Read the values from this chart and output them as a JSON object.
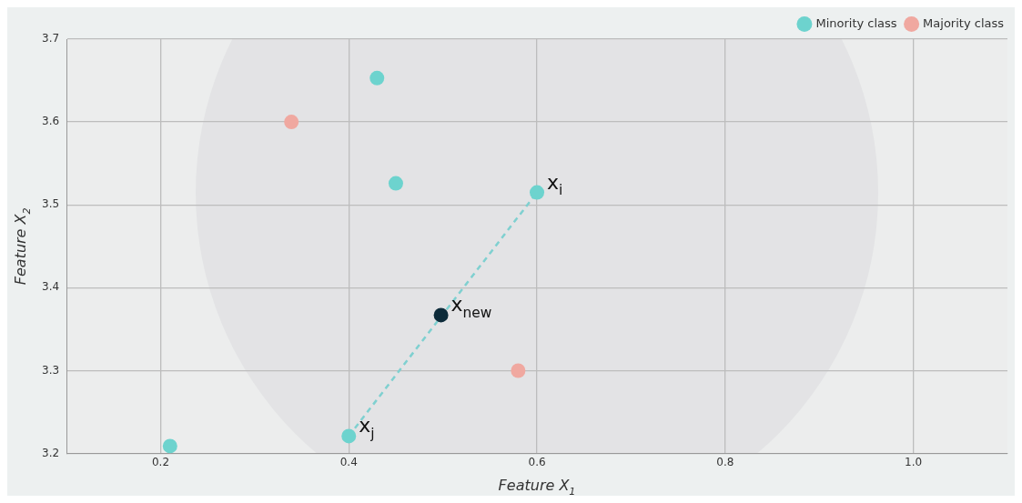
{
  "chart_data": {
    "type": "scatter",
    "xlabel": "Feature X$_{1}$",
    "ylabel": "Feature X$_{2}$",
    "xlim": [
      0.1,
      1.1
    ],
    "xticks": [
      {
        "value": 0.2,
        "label": "0.2"
      },
      {
        "value": 0.4,
        "label": "0.4"
      },
      {
        "value": 0.6,
        "label": "0.6"
      },
      {
        "value": 0.8,
        "label": "0.8"
      },
      {
        "value": 1,
        "label": "1.0"
      }
    ],
    "ylim": [
      3.2,
      3.7
    ],
    "yticks": [
      {
        "value": 3.2,
        "label": "3.2"
      },
      {
        "value": 3.3,
        "label": "3.3"
      },
      {
        "value": 3.4,
        "label": "3.4"
      },
      {
        "value": 3.5,
        "label": "3.5"
      },
      {
        "value": 3.6,
        "label": "3.6"
      },
      {
        "value": 3.7,
        "label": "3.7"
      }
    ],
    "grid": true,
    "legend": "top right",
    "marker": "circle",
    "series": [
      {
        "name": "Minority class",
        "color": "#6dd3ce",
        "x": [
          0.43,
          0.45,
          0.6,
          0.4,
          0.21
        ],
        "values": [
          3.653,
          3.526,
          3.515,
          3.221,
          3.209
        ]
      },
      {
        "name": "Majority class",
        "color": "#f0a8a0",
        "x": [
          0.339,
          0.58
        ],
        "values": [
          3.6,
          3.3
        ]
      },
      {
        "color": "#0d2b3a",
        "x": [
          0.498
        ],
        "values": [
          3.367
        ]
      },
      {
        "type": "line",
        "line_style": "dashed",
        "color": "#7fd0d0",
        "x": [
          0.4,
          0.6
        ],
        "values": [
          3.221,
          3.515
        ]
      }
    ],
    "annotations": [
      {
        "text": "x$_{i}$",
        "x": 0.6,
        "y": 3.515
      },
      {
        "text": "x$_{j}$",
        "x": 0.4,
        "y": 3.221
      },
      {
        "text": "x$_{new}$",
        "x": 0.498,
        "y": 3.367
      }
    ]
  }
}
